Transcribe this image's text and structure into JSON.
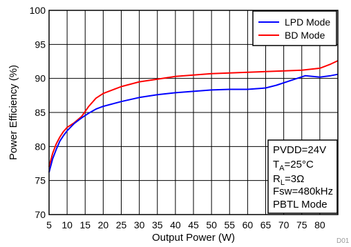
{
  "chart_data": {
    "type": "line",
    "xlabel": "Output Power (W)",
    "ylabel": "Power Efficiency (%)",
    "xlim": [
      5,
      85
    ],
    "ylim": [
      70,
      100
    ],
    "xticks": [
      5,
      10,
      15,
      20,
      25,
      30,
      35,
      40,
      45,
      50,
      55,
      60,
      65,
      70,
      75,
      80
    ],
    "yticks": [
      70,
      75,
      80,
      85,
      90,
      95,
      100
    ],
    "grid": true,
    "legend_position": "top-right",
    "series": [
      {
        "name": "LPD Mode",
        "color": "#0000ff",
        "points": [
          [
            5,
            76.2
          ],
          [
            6,
            78.2
          ],
          [
            7,
            79.6
          ],
          [
            8,
            80.8
          ],
          [
            9,
            81.6
          ],
          [
            10,
            82.3
          ],
          [
            12,
            83.4
          ],
          [
            14,
            84.2
          ],
          [
            16,
            84.9
          ],
          [
            18,
            85.5
          ],
          [
            20,
            85.9
          ],
          [
            25,
            86.6
          ],
          [
            30,
            87.2
          ],
          [
            35,
            87.6
          ],
          [
            40,
            87.9
          ],
          [
            45,
            88.1
          ],
          [
            50,
            88.3
          ],
          [
            55,
            88.4
          ],
          [
            60,
            88.4
          ],
          [
            65,
            88.6
          ],
          [
            68,
            89.0
          ],
          [
            72,
            89.7
          ],
          [
            76,
            90.4
          ],
          [
            78,
            90.3
          ],
          [
            80,
            90.2
          ],
          [
            83,
            90.4
          ],
          [
            85,
            90.6
          ]
        ]
      },
      {
        "name": "BD Mode",
        "color": "#ff0000",
        "points": [
          [
            5,
            77.0
          ],
          [
            6,
            79.0
          ],
          [
            7,
            80.4
          ],
          [
            8,
            81.4
          ],
          [
            9,
            82.2
          ],
          [
            10,
            82.8
          ],
          [
            12,
            83.5
          ],
          [
            14,
            84.4
          ],
          [
            16,
            85.9
          ],
          [
            18,
            87.1
          ],
          [
            20,
            87.8
          ],
          [
            25,
            88.8
          ],
          [
            30,
            89.5
          ],
          [
            35,
            89.9
          ],
          [
            40,
            90.3
          ],
          [
            45,
            90.5
          ],
          [
            50,
            90.7
          ],
          [
            55,
            90.8
          ],
          [
            60,
            90.9
          ],
          [
            65,
            91.0
          ],
          [
            70,
            91.1
          ],
          [
            75,
            91.2
          ],
          [
            80,
            91.5
          ],
          [
            83,
            92.1
          ],
          [
            85,
            92.6
          ]
        ]
      }
    ]
  },
  "conditions": {
    "line1": "PVDD=24V",
    "line2_main": "T",
    "line2_sub": "A",
    "line2_rest": "=25°C",
    "line3_main": "R",
    "line3_sub": "L",
    "line3_rest": "=3Ω",
    "line4": "Fsw=480kHz",
    "line5": "PBTL Mode"
  },
  "figure_id": "D01"
}
